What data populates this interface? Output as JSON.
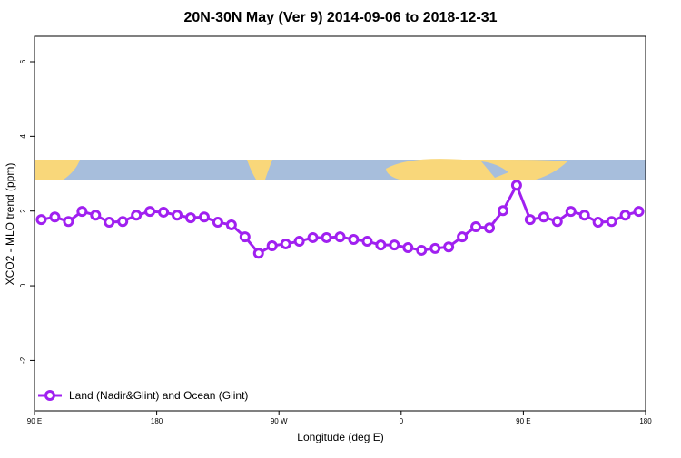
{
  "chart_data": {
    "type": "line",
    "title": "20N-30N May (Ver 9)   2014-09-06 to 2018-12-31",
    "x_label": "Longitude (deg E)",
    "y_label": "XCO2 - MLO trend (ppm)",
    "x": [
      95,
      105,
      115,
      125,
      135,
      145,
      155,
      165,
      175,
      185,
      195,
      205,
      215,
      225,
      235,
      245,
      255,
      265,
      275,
      285,
      295,
      305,
      315,
      325,
      335,
      345,
      355,
      365,
      375,
      385,
      395,
      405,
      415,
      425,
      435,
      445,
      455,
      465,
      475,
      485,
      495,
      505,
      515,
      525,
      535
    ],
    "series": [
      {
        "name": "Land (Nadir&Glint) and Ocean (Glint)",
        "color": "#a020f0",
        "values": [
          1.77,
          1.84,
          1.72,
          1.99,
          1.89,
          1.7,
          1.72,
          1.89,
          1.99,
          1.97,
          1.89,
          1.82,
          1.84,
          1.7,
          1.63,
          1.31,
          0.87,
          1.07,
          1.12,
          1.19,
          1.29,
          1.29,
          1.31,
          1.24,
          1.19,
          1.09,
          1.09,
          1.02,
          0.95,
          1.0,
          1.04,
          1.31,
          1.58,
          1.55,
          2.01,
          2.69,
          1.77,
          1.84,
          1.72,
          1.99,
          1.89,
          1.7,
          1.72,
          1.89,
          1.99
        ]
      }
    ],
    "xlim": [
      90,
      540
    ],
    "xticks": [
      {
        "value": 90,
        "label": "90 E"
      },
      {
        "value": 180,
        "label": "180"
      },
      {
        "value": 270,
        "label": "90 W"
      },
      {
        "value": 360,
        "label": "0"
      },
      {
        "value": 450,
        "label": "90 E"
      },
      {
        "value": 540,
        "label": "180"
      }
    ],
    "ylim": [
      -3.35,
      6.68
    ],
    "yticks": [
      -2,
      0,
      2,
      4,
      6
    ],
    "legend": "bottom-left"
  }
}
